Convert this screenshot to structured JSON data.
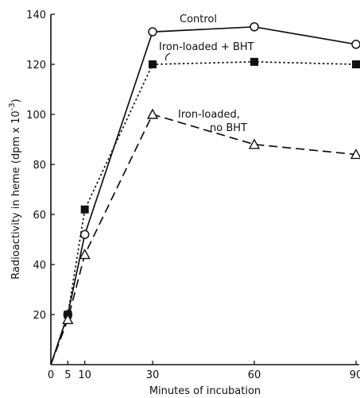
{
  "chart_data": {
    "type": "line",
    "title": "",
    "xlabel": "Minutes of incubation",
    "ylabel": "Radioactivity in heme  (dpm x 10",
    "ylabel_exponent": "-3",
    "ylabel_close": ")",
    "xlim": [
      0,
      90
    ],
    "ylim": [
      0,
      140
    ],
    "x_ticks": [
      0,
      5,
      10,
      30,
      60,
      90
    ],
    "x_tick_labels": [
      "0",
      "5",
      "10",
      "30",
      "60",
      "90"
    ],
    "y_ticks": [
      20,
      40,
      60,
      80,
      100,
      120,
      140
    ],
    "y_tick_labels": [
      "20",
      "40",
      "60",
      "80",
      "100",
      "120",
      "140"
    ],
    "grid": false,
    "series": [
      {
        "name": "Control",
        "label_lines": [
          "Control"
        ],
        "marker": "open-circle",
        "line_style": "solid",
        "x": [
          0,
          5,
          10,
          30,
          60,
          90
        ],
        "y": [
          0,
          20,
          52,
          133,
          135,
          128
        ]
      },
      {
        "name": "Iron-loaded + BHT",
        "label_lines": [
          "Iron-loaded + BHT"
        ],
        "marker": "filled-square",
        "line_style": "dotted",
        "x": [
          0,
          5,
          10,
          30,
          60,
          90
        ],
        "y": [
          0,
          20,
          62,
          120,
          121,
          120
        ]
      },
      {
        "name": "Iron-loaded, no BHT",
        "label_lines": [
          "Iron-loaded,",
          "no BHT"
        ],
        "marker": "open-triangle",
        "line_style": "dashed",
        "x": [
          0,
          5,
          10,
          30,
          60,
          90
        ],
        "y": [
          0,
          18,
          44,
          100,
          88,
          84
        ]
      }
    ]
  }
}
